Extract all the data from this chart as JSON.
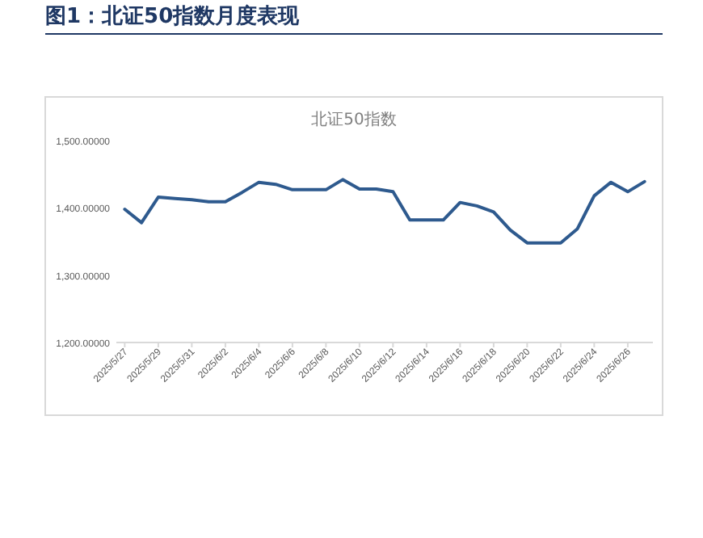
{
  "chart_data": {
    "type": "line",
    "title": "图1：北证50指数月度表现",
    "subtitle": "北证50指数",
    "x": [
      "2025-05-27",
      "2025-05-28",
      "2025-05-29",
      "2025-05-30",
      "2025-05-31",
      "2025-06-01",
      "2025-06-02",
      "2025-06-03",
      "2025-06-04",
      "2025-06-05",
      "2025-06-06",
      "2025-06-07",
      "2025-06-08",
      "2025-06-09",
      "2025-06-10",
      "2025-06-11",
      "2025-06-12",
      "2025-06-13",
      "2025-06-14",
      "2025-06-15",
      "2025-06-16",
      "2025-06-17",
      "2025-06-18",
      "2025-06-19",
      "2025-06-20",
      "2025-06-21",
      "2025-06-22",
      "2025-06-23",
      "2025-06-24",
      "2025-06-25",
      "2025-06-26",
      "2025-06-27"
    ],
    "series": [
      {
        "color": "#2e5a8e",
        "values": [
          1398,
          1378,
          1416,
          1414,
          1412,
          1409,
          1409,
          1423,
          1438,
          1435,
          1427,
          1427,
          1427,
          1442,
          1428,
          1428,
          1424,
          1382,
          1382,
          1382,
          1408,
          1403,
          1394,
          1367,
          1348,
          1348,
          1348,
          1369,
          1418,
          1438,
          1424,
          1439
        ]
      }
    ],
    "xlim": [
      "2025-05-26T12:00",
      "2025-06-27T12:00"
    ],
    "xticks": [
      {
        "value": "2025-05-27",
        "label": "2025/5/27"
      },
      {
        "value": "2025-05-29",
        "label": "2025/5/29"
      },
      {
        "value": "2025-05-31",
        "label": "2025/5/31"
      },
      {
        "value": "2025-06-02",
        "label": "2025/6/2"
      },
      {
        "value": "2025-06-04",
        "label": "2025/6/4"
      },
      {
        "value": "2025-06-06",
        "label": "2025/6/6"
      },
      {
        "value": "2025-06-08",
        "label": "2025/6/8"
      },
      {
        "value": "2025-06-10",
        "label": "2025/6/10"
      },
      {
        "value": "2025-06-12",
        "label": "2025/6/12"
      },
      {
        "value": "2025-06-14",
        "label": "2025/6/14"
      },
      {
        "value": "2025-06-16",
        "label": "2025/6/16"
      },
      {
        "value": "2025-06-18",
        "label": "2025/6/18"
      },
      {
        "value": "2025-06-20",
        "label": "2025/6/20"
      },
      {
        "value": "2025-06-22",
        "label": "2025/6/22"
      },
      {
        "value": "2025-06-24",
        "label": "2025/6/24"
      },
      {
        "value": "2025-06-26",
        "label": "2025/6/26"
      }
    ],
    "ylim": [
      1200,
      1500
    ],
    "yticks": [
      {
        "value": 1200,
        "label": "1,200.00000"
      },
      {
        "value": 1300,
        "label": "1,300.00000"
      },
      {
        "value": 1400,
        "label": "1,400.00000"
      },
      {
        "value": 1500,
        "label": "1,500.00000"
      }
    ],
    "grid": false,
    "marker": "none",
    "line_style": "solid"
  }
}
